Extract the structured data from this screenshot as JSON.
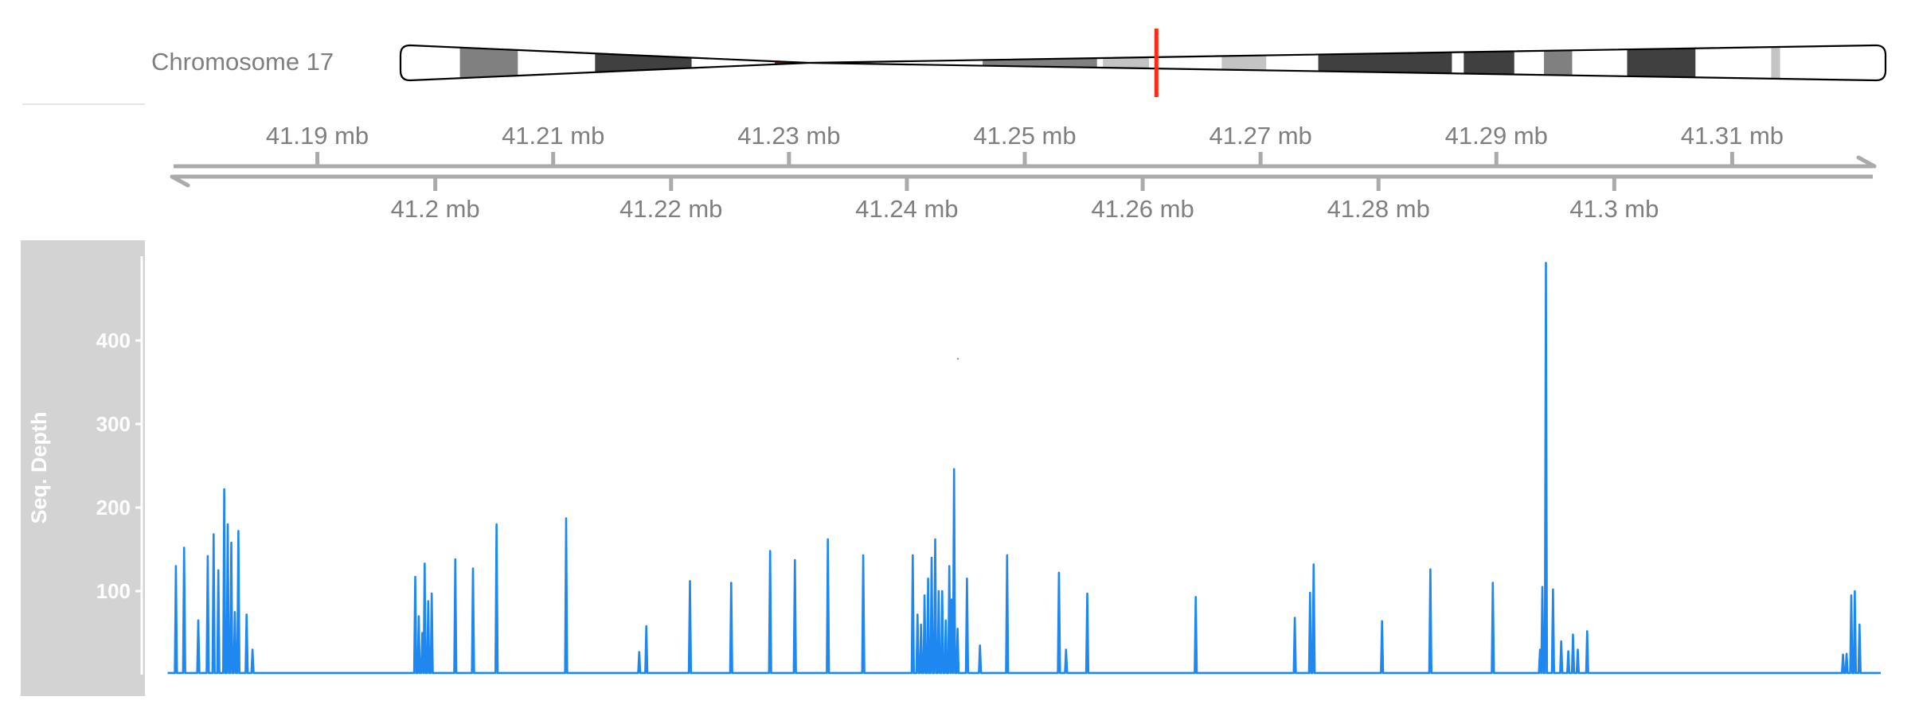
{
  "ideogram": {
    "label": "Chromosome 17",
    "highlight_color": "#ff2a12",
    "centromere_color": "#8a2520",
    "bands": [
      {
        "start": 0.04,
        "end": 0.079,
        "shade": "#808080"
      },
      {
        "start": 0.131,
        "end": 0.196,
        "shade": "#404040"
      },
      {
        "start": 0.252,
        "end": 0.263,
        "shade": "#8a2520"
      },
      {
        "start": 0.284,
        "end": 0.297,
        "shade": "#8a2520"
      },
      {
        "start": 0.392,
        "end": 0.469,
        "shade": "#808080"
      },
      {
        "start": 0.473,
        "end": 0.504,
        "shade": "#c4c4c4"
      },
      {
        "start": 0.553,
        "end": 0.583,
        "shade": "#c4c4c4"
      },
      {
        "start": 0.618,
        "end": 0.708,
        "shade": "#404040"
      },
      {
        "start": 0.716,
        "end": 0.75,
        "shade": "#404040"
      },
      {
        "start": 0.77,
        "end": 0.789,
        "shade": "#808080"
      },
      {
        "start": 0.826,
        "end": 0.872,
        "shade": "#404040"
      },
      {
        "start": 0.923,
        "end": 0.929,
        "shade": "#c4c4c4"
      }
    ],
    "centromere": 0.275,
    "highlight_position": 0.509
  },
  "axis": {
    "colors": {
      "axis": "#aaaaaa",
      "text": "#7f7f7f"
    },
    "upper_ticks": [
      "41.19 mb",
      "41.21 mb",
      "41.23 mb",
      "41.25 mb",
      "41.27 mb",
      "41.29 mb",
      "41.31 mb"
    ],
    "lower_ticks": [
      "41.2 mb",
      "41.22 mb",
      "41.24 mb",
      "41.26 mb",
      "41.28 mb",
      "41.3 mb"
    ]
  },
  "track": {
    "label": "Seq. Depth",
    "line_color": "#1e88f0",
    "panel_color": "#d3d3d3"
  },
  "chart_data": {
    "type": "line",
    "title": "",
    "xlabel": "",
    "ylabel": "Seq. Depth",
    "xlim": [
      41.1774,
      41.3226
    ],
    "ylim": [
      0,
      500
    ],
    "yticks": [
      100,
      200,
      300,
      400
    ],
    "xticks_upper": [
      41.19,
      41.21,
      41.23,
      41.25,
      41.27,
      41.29,
      41.31
    ],
    "xticks_lower": [
      41.2,
      41.22,
      41.24,
      41.26,
      41.28,
      41.3
    ],
    "x_units": "mb",
    "grid": false,
    "legend": "none",
    "baseline": 2,
    "peaks": [
      [
        41.178,
        130
      ],
      [
        41.1787,
        152
      ],
      [
        41.1799,
        65
      ],
      [
        41.1807,
        142
      ],
      [
        41.1812,
        168
      ],
      [
        41.1816,
        125
      ],
      [
        41.1821,
        222
      ],
      [
        41.1824,
        180
      ],
      [
        41.1827,
        158
      ],
      [
        41.183,
        75
      ],
      [
        41.1833,
        172
      ],
      [
        41.184,
        72
      ],
      [
        41.1845,
        30
      ],
      [
        41.1983,
        117
      ],
      [
        41.1986,
        70
      ],
      [
        41.1989,
        50
      ],
      [
        41.1991,
        133
      ],
      [
        41.1994,
        88
      ],
      [
        41.1997,
        97
      ],
      [
        41.2017,
        138
      ],
      [
        41.2032,
        127
      ],
      [
        41.2052,
        180
      ],
      [
        41.2111,
        187
      ],
      [
        41.2173,
        27
      ],
      [
        41.2179,
        58
      ],
      [
        41.2216,
        112
      ],
      [
        41.2251,
        110
      ],
      [
        41.2284,
        148
      ],
      [
        41.2305,
        137
      ],
      [
        41.2333,
        162
      ],
      [
        41.2363,
        143
      ],
      [
        41.2405,
        143
      ],
      [
        41.2409,
        72
      ],
      [
        41.2412,
        60
      ],
      [
        41.2415,
        95
      ],
      [
        41.2418,
        115
      ],
      [
        41.2421,
        140
      ],
      [
        41.2424,
        162
      ],
      [
        41.2427,
        100
      ],
      [
        41.243,
        100
      ],
      [
        41.2433,
        65
      ],
      [
        41.2436,
        130
      ],
      [
        41.2438,
        90
      ],
      [
        41.244,
        246
      ],
      [
        41.2443,
        55
      ],
      [
        41.2451,
        115
      ],
      [
        41.2462,
        35
      ],
      [
        41.2485,
        143
      ],
      [
        41.2529,
        122
      ],
      [
        41.2535,
        30
      ],
      [
        41.2553,
        97
      ],
      [
        41.2645,
        93
      ],
      [
        41.2729,
        68
      ],
      [
        41.2742,
        98
      ],
      [
        41.2745,
        132
      ],
      [
        41.2803,
        64
      ],
      [
        41.2844,
        126
      ],
      [
        41.2897,
        110
      ],
      [
        41.2937,
        30
      ],
      [
        41.2939,
        105
      ],
      [
        41.2942,
        493
      ],
      [
        41.2948,
        102
      ],
      [
        41.2955,
        40
      ],
      [
        41.2961,
        28
      ],
      [
        41.2965,
        48
      ],
      [
        41.2969,
        30
      ],
      [
        41.2977,
        52
      ],
      [
        41.3194,
        24
      ],
      [
        41.3197,
        25
      ],
      [
        41.3201,
        95
      ],
      [
        41.3204,
        100
      ],
      [
        41.3208,
        60
      ]
    ]
  }
}
